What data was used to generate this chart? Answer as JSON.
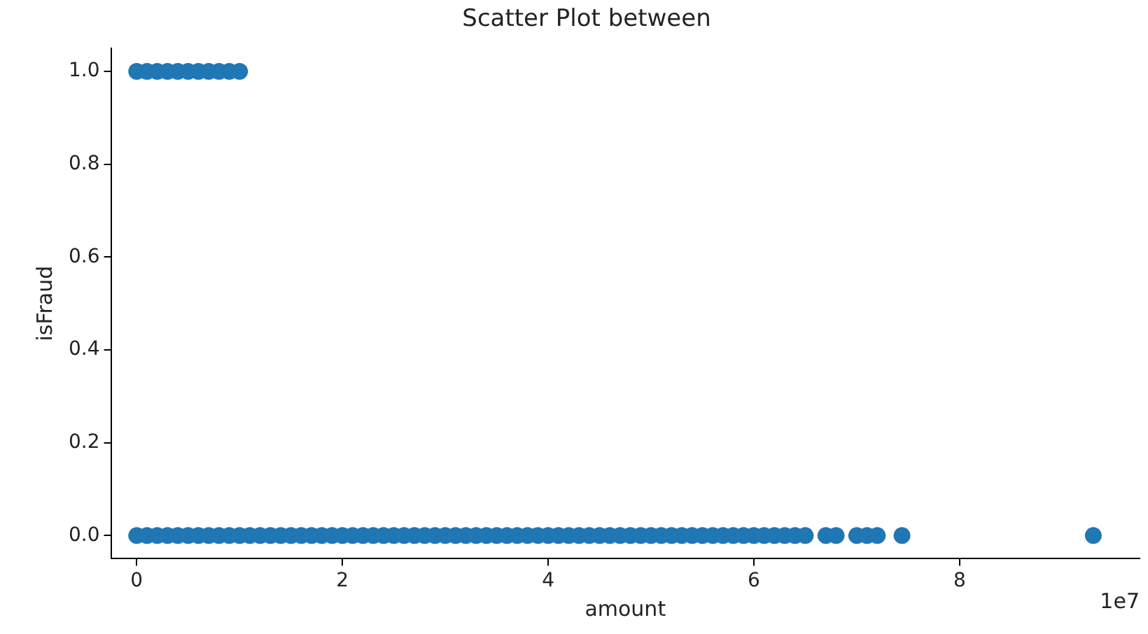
{
  "chart_data": {
    "type": "scatter",
    "title": "Scatter Plot between",
    "xlabel": "amount",
    "ylabel": "isFraud",
    "annotations": [
      "1e7"
    ],
    "xlim": [
      -0.25,
      9.75
    ],
    "ylim": [
      -0.05,
      1.05
    ],
    "xticks": [
      0,
      2,
      4,
      6,
      8
    ],
    "yticks": [
      {
        "value": 0,
        "label": "0.0"
      },
      {
        "value": 0.2,
        "label": "0.2"
      },
      {
        "value": 0.4,
        "label": "0.4"
      },
      {
        "value": 0.6,
        "label": "0.6"
      },
      {
        "value": 0.8,
        "label": "0.8"
      },
      {
        "value": 1,
        "label": "1.0"
      }
    ],
    "grid": false,
    "legend": false,
    "marker": "circle",
    "series": [
      {
        "color": "#1f77b4",
        "x": [
          0,
          0.1,
          0.2,
          0.3,
          0.4,
          0.5,
          0.6,
          0.7,
          0.8,
          0.9,
          1.0
        ],
        "values": [
          1,
          1,
          1,
          1,
          1,
          1,
          1,
          1,
          1,
          1,
          1
        ]
      },
      {
        "color": "#1f77b4",
        "x": [
          0,
          0.1,
          0.2,
          0.3,
          0.4,
          0.5,
          0.6,
          0.7,
          0.8,
          0.9,
          1.0,
          1.1,
          1.2,
          1.3,
          1.4,
          1.5,
          1.6,
          1.7,
          1.8,
          1.9,
          2.0,
          2.1,
          2.2,
          2.3,
          2.4,
          2.5,
          2.6,
          2.7,
          2.8,
          2.9,
          3.0,
          3.1,
          3.2,
          3.3,
          3.4,
          3.5,
          3.6,
          3.7,
          3.8,
          3.9,
          4.0,
          4.1,
          4.2,
          4.3,
          4.4,
          4.5,
          4.6,
          4.7,
          4.8,
          4.9,
          5.0,
          5.1,
          5.2,
          5.3,
          5.4,
          5.5,
          5.6,
          5.7,
          5.8,
          5.9,
          6.0,
          6.1,
          6.2,
          6.3,
          6.4,
          6.5,
          6.7,
          6.8,
          7.0,
          7.1,
          7.2,
          7.44,
          9.3
        ],
        "values": [
          0,
          0,
          0,
          0,
          0,
          0,
          0,
          0,
          0,
          0,
          0,
          0,
          0,
          0,
          0,
          0,
          0,
          0,
          0,
          0,
          0,
          0,
          0,
          0,
          0,
          0,
          0,
          0,
          0,
          0,
          0,
          0,
          0,
          0,
          0,
          0,
          0,
          0,
          0,
          0,
          0,
          0,
          0,
          0,
          0,
          0,
          0,
          0,
          0,
          0,
          0,
          0,
          0,
          0,
          0,
          0,
          0,
          0,
          0,
          0,
          0,
          0,
          0,
          0,
          0,
          0,
          0,
          0,
          0,
          0,
          0,
          0,
          0
        ]
      }
    ]
  }
}
